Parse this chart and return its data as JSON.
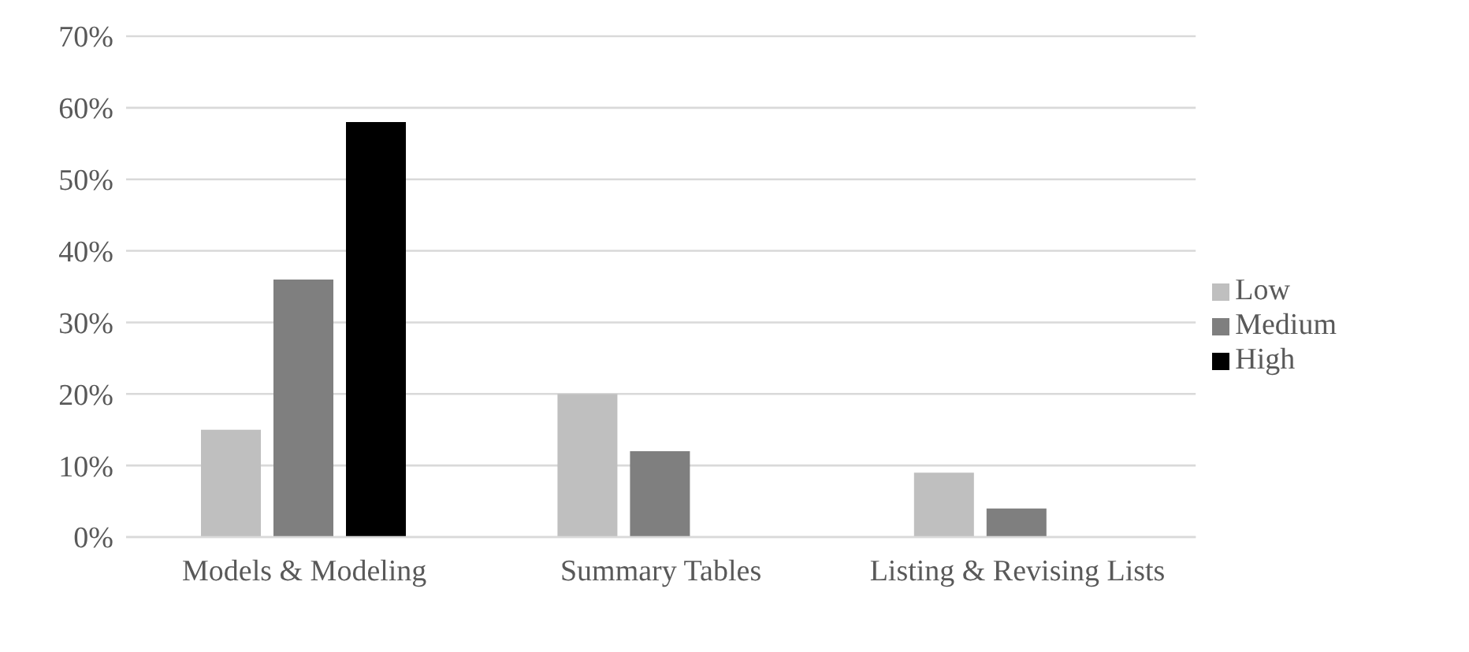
{
  "chart_data": {
    "type": "bar",
    "categories": [
      "Models & Modeling",
      "Summary Tables",
      "Listing & Revising Lists"
    ],
    "series": [
      {
        "name": "Low",
        "color": "#bfbfbf",
        "values": [
          15,
          20,
          9
        ]
      },
      {
        "name": "Medium",
        "color": "#7f7f7f",
        "values": [
          36,
          12,
          4
        ]
      },
      {
        "name": "High",
        "color": "#000000",
        "values": [
          58,
          0,
          0
        ]
      }
    ],
    "ylim": [
      0,
      70
    ],
    "yticks": [
      {
        "value": 0,
        "label": "0%"
      },
      {
        "value": 10,
        "label": "10%"
      },
      {
        "value": 20,
        "label": "20%"
      },
      {
        "value": 30,
        "label": "30%"
      },
      {
        "value": 40,
        "label": "40%"
      },
      {
        "value": 50,
        "label": "50%"
      },
      {
        "value": 60,
        "label": "60%"
      },
      {
        "value": 70,
        "label": "70%"
      }
    ],
    "grid": "y",
    "legend": "right"
  }
}
